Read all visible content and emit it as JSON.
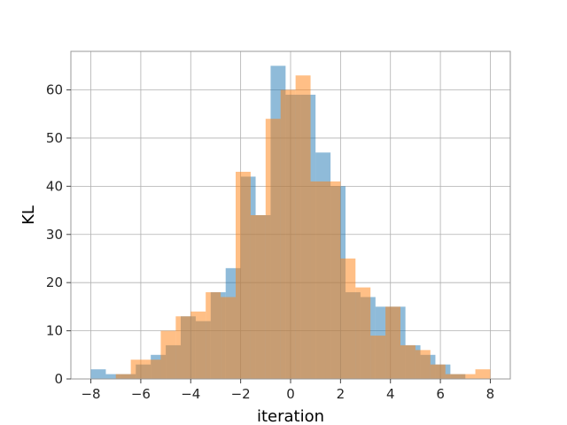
{
  "chart_data": {
    "type": "bar",
    "xlabel": "iteration",
    "ylabel": "KL",
    "xlim": [
      -8.8,
      8.8
    ],
    "ylim": [
      0,
      68
    ],
    "xticks": [
      -8,
      -6,
      -4,
      -2,
      0,
      2,
      4,
      6,
      8
    ],
    "yticks": [
      0,
      10,
      20,
      30,
      40,
      50,
      60
    ],
    "xtick_labels": [
      "−8",
      "−6",
      "−4",
      "−2",
      "0",
      "2",
      "4",
      "6",
      "8"
    ],
    "ytick_labels": [
      "0",
      "10",
      "20",
      "30",
      "40",
      "50",
      "60"
    ],
    "grid": true,
    "series": [
      {
        "color": "#1f77b4",
        "alpha": 0.5,
        "bins": [
          [
            -8.0,
            -7.4,
            2
          ],
          [
            -7.4,
            -6.8,
            1
          ],
          [
            -6.8,
            -6.2,
            1
          ],
          [
            -6.2,
            -5.6,
            3
          ],
          [
            -5.6,
            -5.0,
            5
          ],
          [
            -5.0,
            -4.4,
            7
          ],
          [
            -4.4,
            -3.8,
            13
          ],
          [
            -3.8,
            -3.2,
            12
          ],
          [
            -3.2,
            -2.6,
            18
          ],
          [
            -2.6,
            -2.0,
            23
          ],
          [
            -2.0,
            -1.4,
            42
          ],
          [
            -1.4,
            -0.8,
            34
          ],
          [
            -0.8,
            -0.2,
            65
          ],
          [
            -0.2,
            0.4,
            59
          ],
          [
            0.4,
            1.0,
            59
          ],
          [
            1.0,
            1.6,
            47
          ],
          [
            1.6,
            2.2,
            40
          ],
          [
            2.2,
            2.8,
            18
          ],
          [
            2.8,
            3.4,
            17
          ],
          [
            3.4,
            4.0,
            15
          ],
          [
            4.0,
            4.6,
            15
          ],
          [
            4.6,
            5.2,
            7
          ],
          [
            5.2,
            5.8,
            5
          ],
          [
            5.8,
            6.4,
            3
          ],
          [
            6.4,
            7.0,
            1
          ]
        ]
      },
      {
        "color": "#ff7f0e",
        "alpha": 0.5,
        "bins": [
          [
            -7.0,
            -6.4,
            1
          ],
          [
            -6.4,
            -5.8,
            4
          ],
          [
            -5.8,
            -5.2,
            4
          ],
          [
            -5.2,
            -4.6,
            10
          ],
          [
            -4.6,
            -4.0,
            13
          ],
          [
            -4.0,
            -3.4,
            14
          ],
          [
            -3.4,
            -2.8,
            18
          ],
          [
            -2.8,
            -2.2,
            17
          ],
          [
            -2.2,
            -1.6,
            43
          ],
          [
            -1.6,
            -1.0,
            34
          ],
          [
            -1.0,
            -0.4,
            54
          ],
          [
            -0.4,
            0.2,
            60
          ],
          [
            0.2,
            0.8,
            63
          ],
          [
            0.8,
            1.4,
            41
          ],
          [
            1.4,
            2.0,
            41
          ],
          [
            2.0,
            2.6,
            25
          ],
          [
            2.6,
            3.2,
            19
          ],
          [
            3.2,
            3.8,
            9
          ],
          [
            3.8,
            4.4,
            15
          ],
          [
            4.4,
            5.0,
            7
          ],
          [
            5.0,
            5.6,
            6
          ],
          [
            5.6,
            6.2,
            3
          ],
          [
            6.2,
            6.8,
            1
          ],
          [
            6.8,
            7.4,
            1
          ],
          [
            7.4,
            8.0,
            2
          ]
        ]
      }
    ]
  }
}
